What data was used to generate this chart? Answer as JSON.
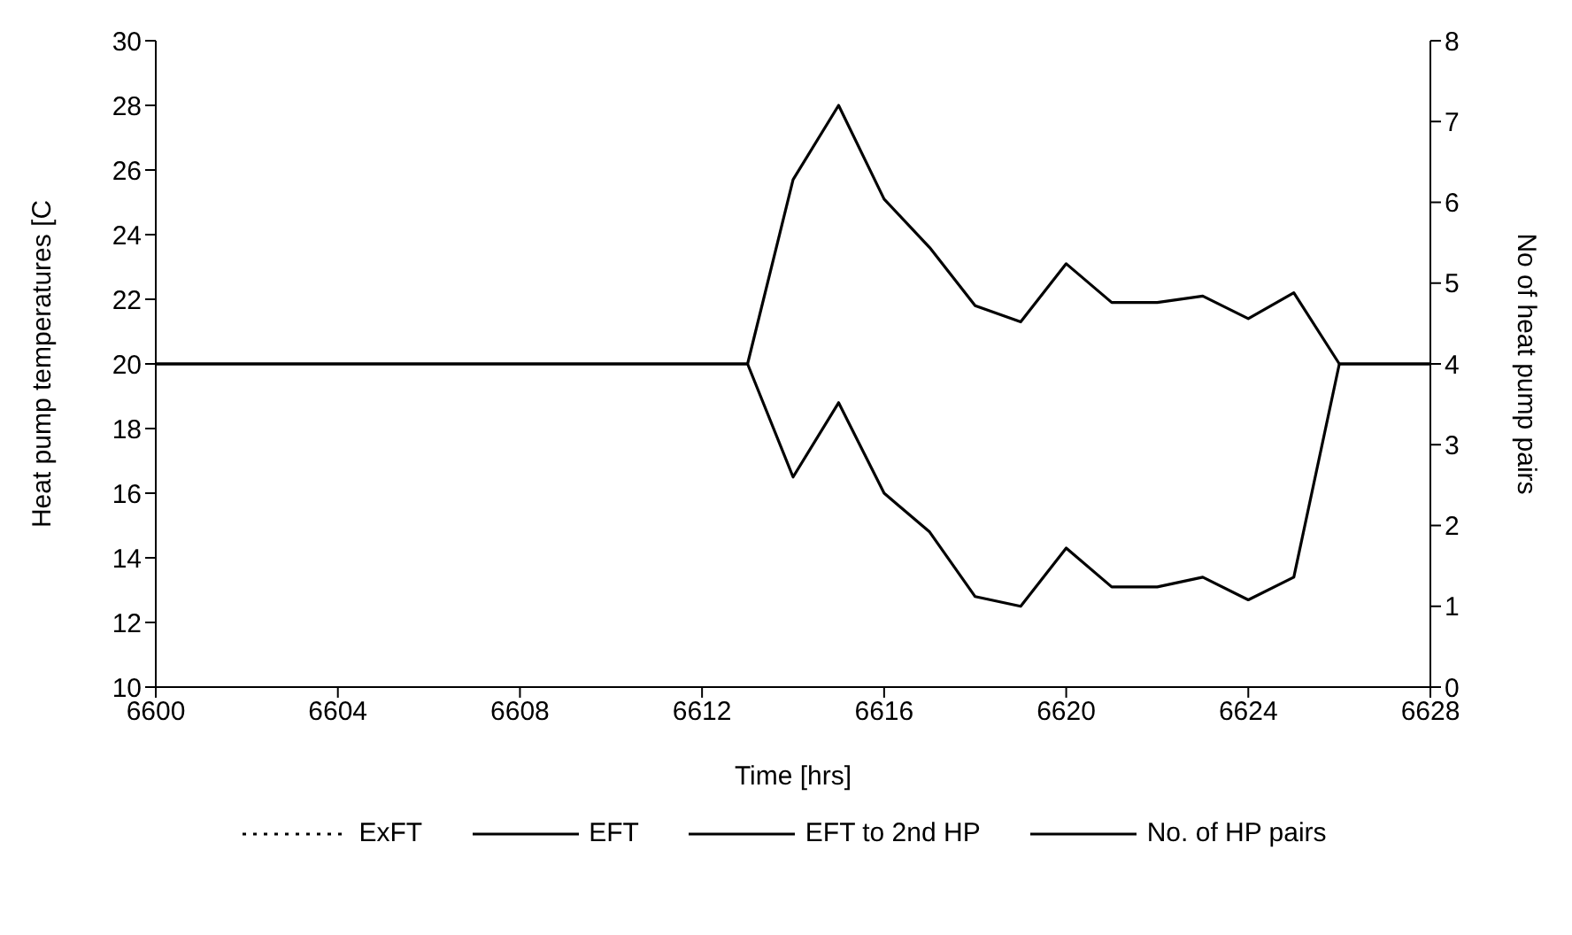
{
  "chart_data": {
    "type": "line",
    "xlabel": "Time [hrs]",
    "ylabel": "Heat pump temperatures [C",
    "y2label": "No of heat pump pairs",
    "x": [
      6600,
      6613,
      6614,
      6615,
      6616,
      6617,
      6618,
      6619,
      6620,
      6621,
      6622,
      6623,
      6624,
      6625,
      6626,
      6628
    ],
    "series": [
      {
        "name": "ExFT",
        "color": "#000000",
        "line_style": "dotted",
        "values": [
          null,
          null,
          null,
          null,
          null,
          null,
          null,
          null,
          null,
          null,
          null,
          null,
          null,
          null,
          null,
          null
        ]
      },
      {
        "name": "EFT",
        "color": "#000000",
        "values": [
          20,
          20,
          16.5,
          18.8,
          16.0,
          14.8,
          12.8,
          12.5,
          14.3,
          13.1,
          13.1,
          13.4,
          12.7,
          13.4,
          20,
          20
        ]
      },
      {
        "name": "EFT to 2nd HP",
        "color": "#000000",
        "values": [
          20,
          20,
          25.7,
          28.0,
          25.1,
          23.6,
          21.8,
          21.3,
          23.1,
          21.9,
          21.9,
          22.1,
          21.4,
          22.2,
          20,
          20
        ]
      },
      {
        "name": "No. of HP pairs",
        "color": "#000000",
        "values": [
          null,
          null,
          null,
          null,
          null,
          null,
          null,
          null,
          null,
          null,
          null,
          null,
          null,
          null,
          null,
          null
        ]
      }
    ],
    "xlim": [
      6600,
      6628
    ],
    "xticks": [
      6600,
      6604,
      6608,
      6612,
      6616,
      6620,
      6624,
      6628
    ],
    "ylim": [
      10,
      30
    ],
    "yticks": [
      10,
      12,
      14,
      16,
      18,
      20,
      22,
      24,
      26,
      28,
      30
    ],
    "y2lim": [
      0,
      8
    ],
    "y2ticks": [
      0,
      1,
      2,
      3,
      4,
      5,
      6,
      7,
      8
    ],
    "grid": false,
    "legend": "bottom",
    "marker": "none",
    "line_style": "solid"
  }
}
